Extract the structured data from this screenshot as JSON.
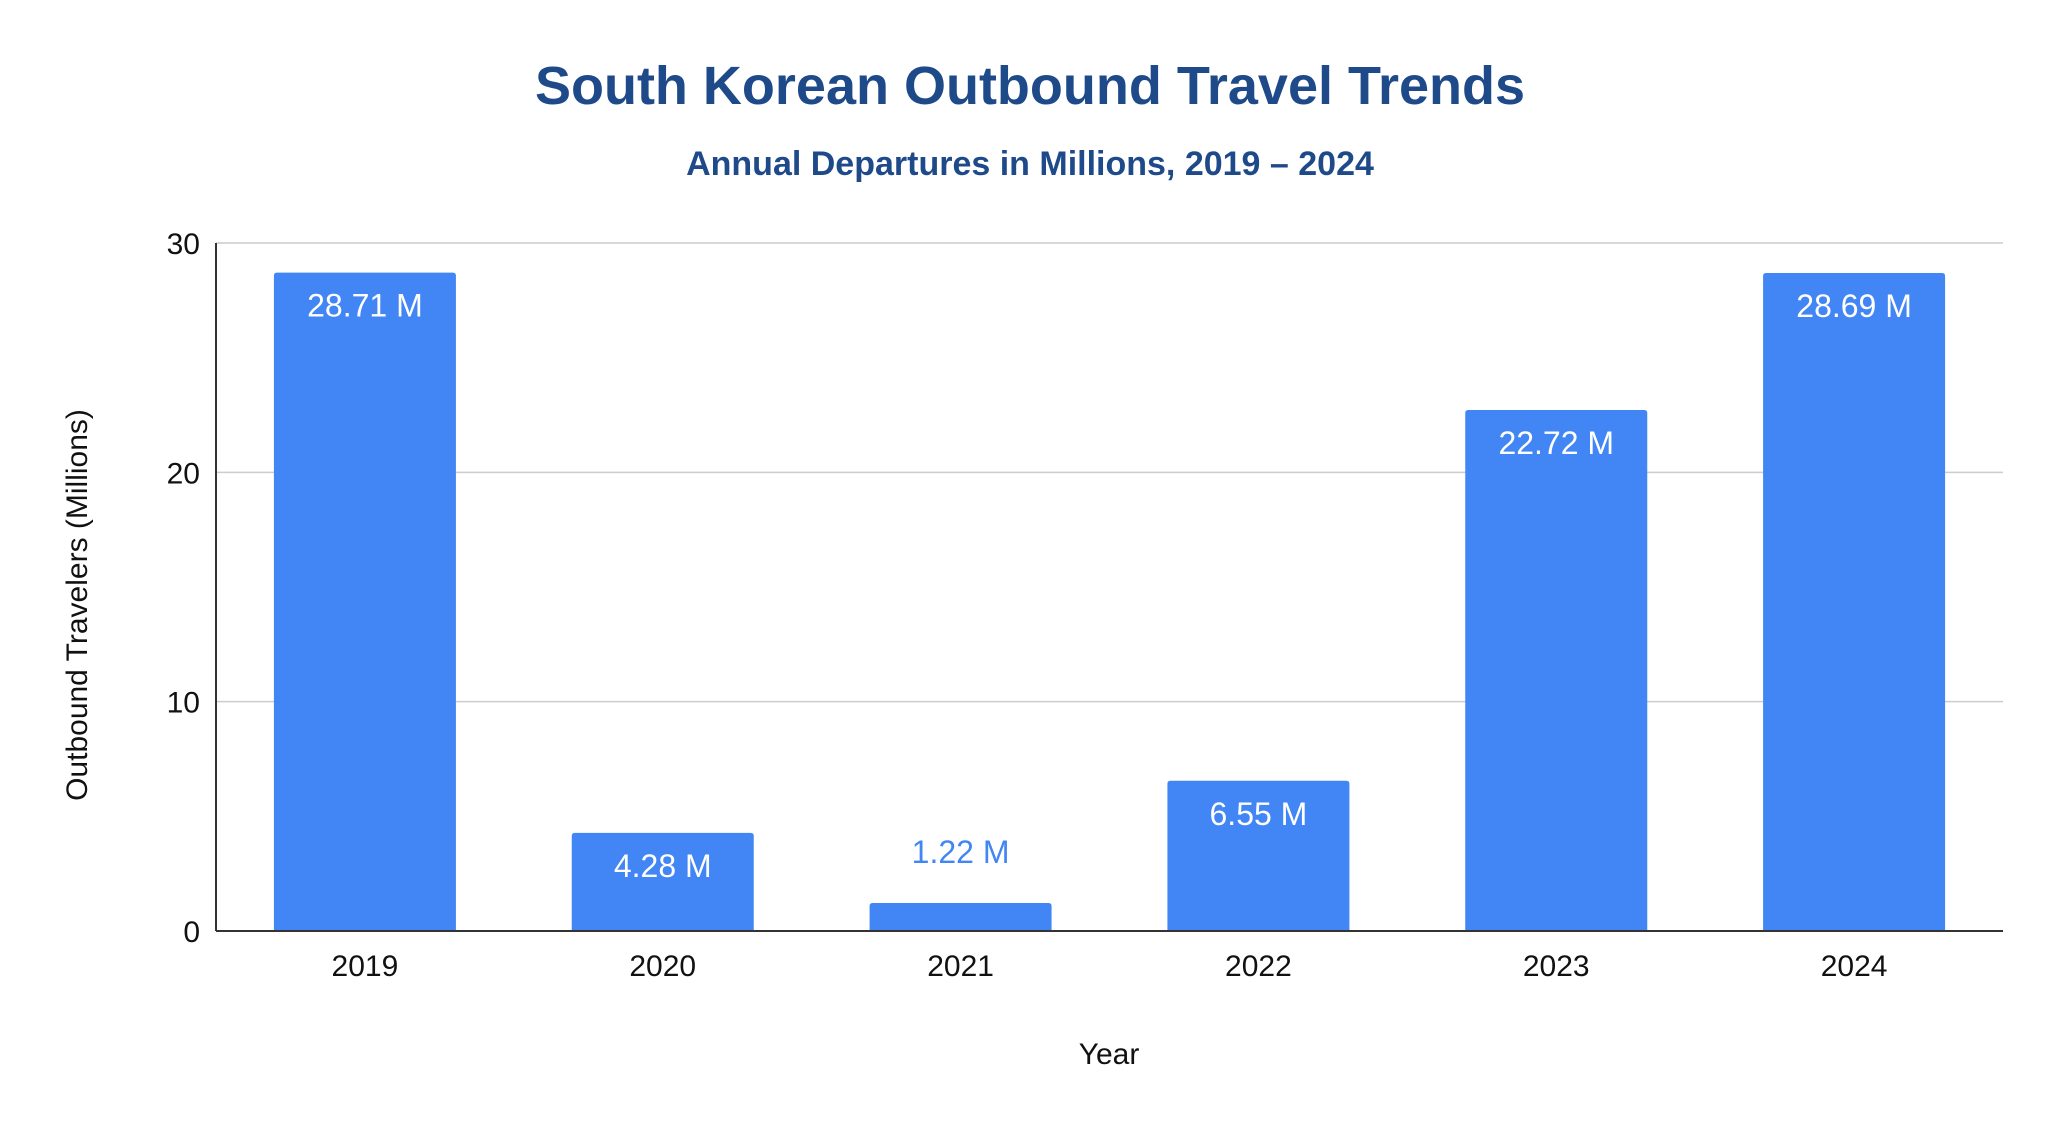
{
  "chart_data": {
    "type": "bar",
    "title": "South Korean Outbound Travel Trends",
    "subtitle": "Annual Departures in Millions, 2019 – 2024",
    "xlabel": "Year",
    "ylabel": "Outbound Travelers (Millions)",
    "categories": [
      "2019",
      "2020",
      "2021",
      "2022",
      "2023",
      "2024"
    ],
    "values": [
      28.71,
      4.28,
      1.22,
      6.55,
      22.72,
      28.69
    ],
    "data_labels": [
      "28.71 M",
      "4.28 M",
      "1.22 M",
      "6.55 M",
      "22.72 M",
      "28.69 M"
    ],
    "ylim": [
      0,
      30
    ],
    "yticks": [
      0,
      10,
      20,
      30
    ],
    "grid": true,
    "legend": "none",
    "colors": {
      "bar": "#4285f4",
      "title": "#1f4a8a",
      "label_inside": "#ffffff",
      "label_outside": "#4285f4",
      "grid": "#cccccc",
      "axis": "#333333"
    }
  }
}
